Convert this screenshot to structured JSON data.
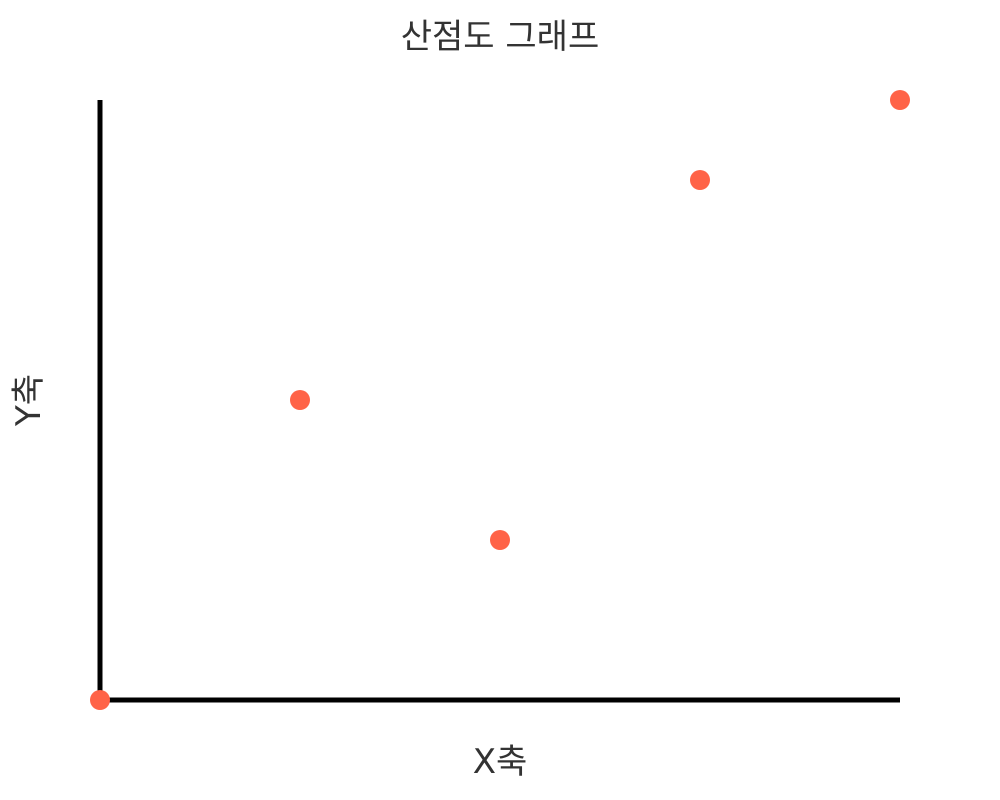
{
  "chart_data": {
    "type": "scatter",
    "title": "산점도 그래프",
    "xlabel": "X축",
    "ylabel": "Y축",
    "xlim": [
      0,
      4
    ],
    "ylim": [
      0,
      6
    ],
    "grid": false,
    "points": [
      {
        "x": 0,
        "y": 0
      },
      {
        "x": 1,
        "y": 3
      },
      {
        "x": 2,
        "y": 1.6
      },
      {
        "x": 3,
        "y": 5.2
      },
      {
        "x": 4,
        "y": 6
      }
    ],
    "point_color": "#ff6347",
    "axis_color": "#000000"
  }
}
